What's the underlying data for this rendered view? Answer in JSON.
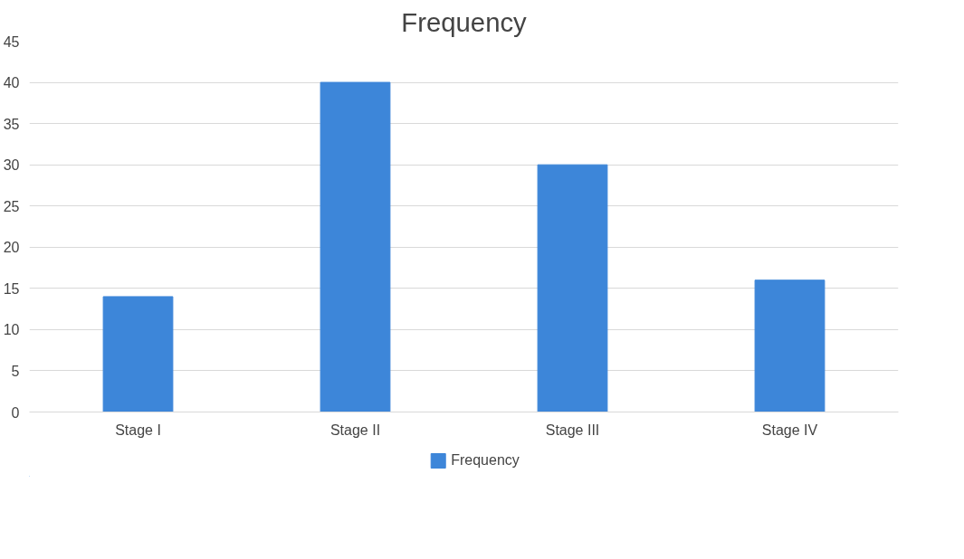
{
  "chart_data": {
    "type": "bar",
    "title": "Frequency",
    "categories": [
      "Stage I",
      "Stage II",
      "Stage III",
      "Stage IV"
    ],
    "series": [
      {
        "name": "Frequency",
        "color": "#3d86d9",
        "values": [
          14,
          40,
          30,
          16
        ]
      }
    ],
    "ylim": [
      0,
      45
    ],
    "yticks": [
      0,
      5,
      10,
      15,
      20,
      25,
      30,
      35,
      40,
      45
    ],
    "grid": "y",
    "legend": "bottom"
  }
}
